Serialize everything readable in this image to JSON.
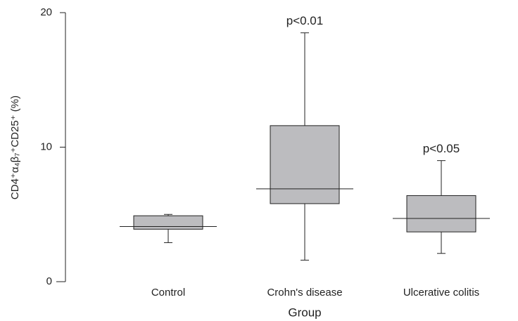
{
  "chart_data": {
    "type": "box",
    "ylabel": "CD4⁺α₄β₇⁺CD25⁺ (%)",
    "xlabel": "Group",
    "categories": [
      "Control",
      "Crohn's disease",
      "Ulcerative colitis"
    ],
    "boxes": [
      {
        "whislo": 2.9,
        "q1": 3.9,
        "med": 4.1,
        "q3": 4.9,
        "whishi": 5.0
      },
      {
        "whislo": 1.6,
        "q1": 5.8,
        "med": 6.9,
        "q3": 11.6,
        "whishi": 18.5
      },
      {
        "whislo": 2.1,
        "q1": 3.7,
        "med": 4.7,
        "q3": 6.4,
        "whishi": 9.0
      }
    ],
    "annotations": [
      null,
      "p<0.01",
      "p<0.05"
    ],
    "color": "#bcbcbf",
    "ylim": [
      0,
      20
    ],
    "yticks": [
      0,
      10,
      20
    ]
  }
}
